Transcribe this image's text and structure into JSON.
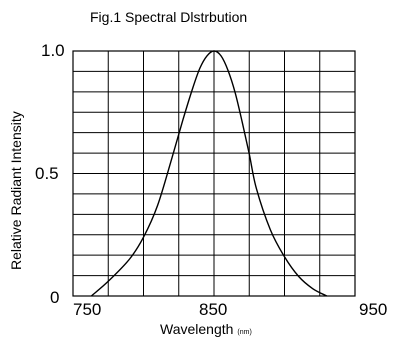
{
  "chart_data": {
    "type": "line",
    "title": "Fig.1 Spectral Dlstrbution",
    "xlabel": "Wavelength",
    "xunit": "(nm)",
    "ylabel": "Relative Radiant Intensity",
    "xlim": [
      750,
      950
    ],
    "ylim": [
      0,
      1.0
    ],
    "x_ticks": [
      "750",
      "850",
      "950"
    ],
    "y_ticks": [
      "1.0",
      "0.5",
      "0"
    ],
    "grid": true,
    "legend": "none",
    "series": [
      {
        "x": [
          763,
          775,
          790,
          800,
          810,
          820,
          828,
          835,
          840,
          845,
          850,
          855,
          860,
          865,
          870,
          875,
          880,
          890,
          900,
          910,
          920,
          930
        ],
        "y": [
          0.0,
          0.06,
          0.15,
          0.24,
          0.37,
          0.56,
          0.72,
          0.85,
          0.93,
          0.98,
          1.0,
          0.98,
          0.92,
          0.83,
          0.71,
          0.58,
          0.44,
          0.27,
          0.16,
          0.08,
          0.03,
          0.0
        ]
      }
    ]
  }
}
